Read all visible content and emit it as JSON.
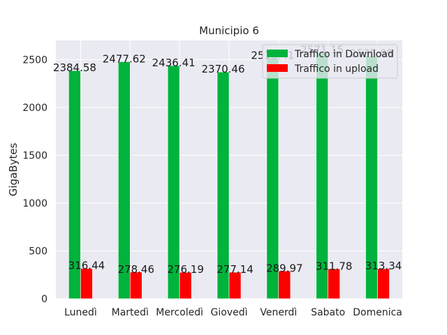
{
  "chart_data": {
    "type": "bar",
    "title": "Municipio 6",
    "xlabel": "",
    "ylabel": "GigaBytes",
    "ylim": [
      0,
      2700
    ],
    "yticks": [
      0,
      500,
      1000,
      1500,
      2000,
      2500
    ],
    "categories": [
      "Lunedì",
      "Martedì",
      "Mercoledì",
      "Giovedì",
      "Venerdì",
      "Sabato",
      "Domenica"
    ],
    "series": [
      {
        "name": "Traffico in Download",
        "color": "#00b33c",
        "values": [
          2384.58,
          2477.62,
          2436.41,
          2370.46,
          2515.41,
          2571.15,
          2535.09
        ]
      },
      {
        "name": "Traffico in upload",
        "color": "#ff0000",
        "values": [
          316.44,
          278.46,
          276.19,
          277.14,
          289.97,
          311.78,
          313.34
        ]
      }
    ],
    "grid": true,
    "background": "#eaeaf2",
    "legend_position": "top-right"
  }
}
